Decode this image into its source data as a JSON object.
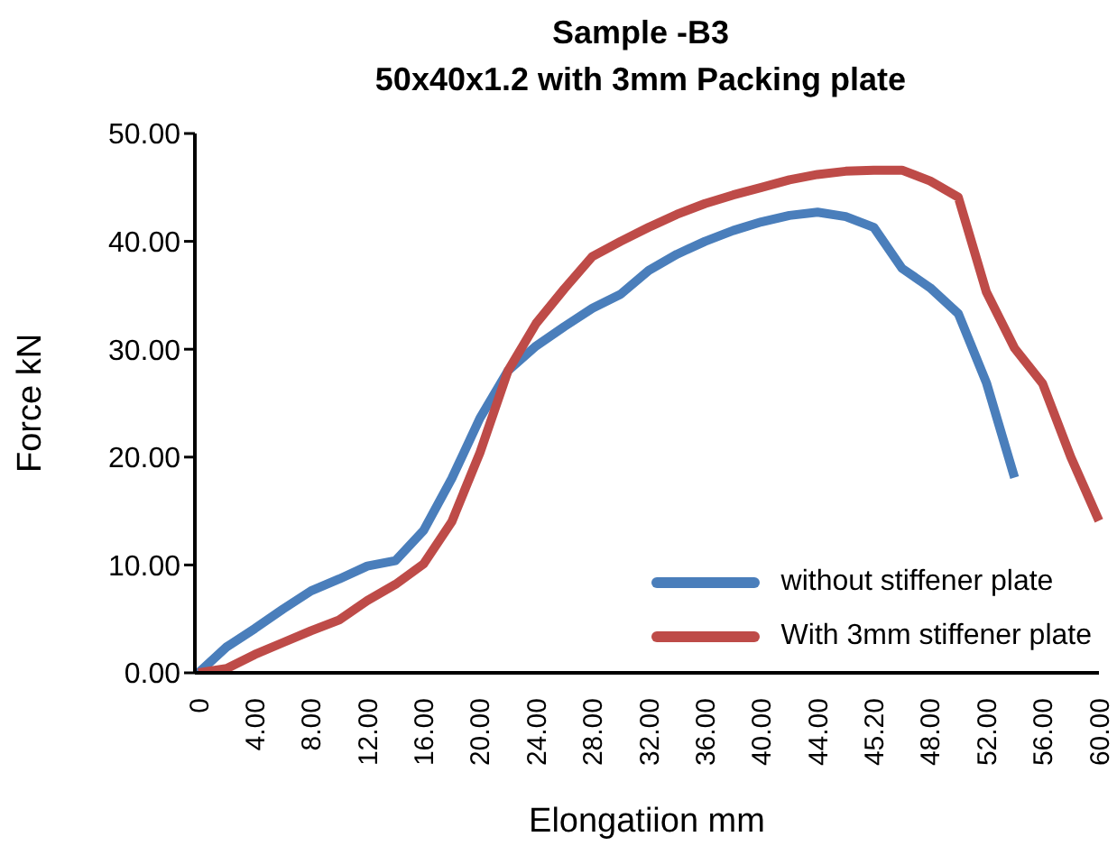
{
  "chart_data": {
    "type": "line",
    "title": "Sample -B3\n50x40x1.2 with 3mm Packing plate",
    "xlabel": "Elongatiion mm",
    "ylabel": "Force kN",
    "categories": [
      "0",
      null,
      "4.00",
      null,
      "8.00",
      null,
      "12.00",
      null,
      "16.00",
      null,
      "20.00",
      null,
      "24.00",
      null,
      "28.00",
      null,
      "32.00",
      null,
      "36.00",
      null,
      "40.00",
      null,
      "44.00",
      null,
      "45.20",
      null,
      "48.00",
      null,
      "52.00",
      null,
      "56.00",
      null,
      "60.00"
    ],
    "ylim": [
      0,
      50
    ],
    "yticks": [
      {
        "value": 0,
        "label": "0.00"
      },
      {
        "value": 10,
        "label": "10.00"
      },
      {
        "value": 20,
        "label": "20.00"
      },
      {
        "value": 30,
        "label": "30.00"
      },
      {
        "value": 40,
        "label": "40.00"
      },
      {
        "value": 50,
        "label": "50.00"
      }
    ],
    "legend": "bottom right",
    "line_style": "solid",
    "series": [
      {
        "name": "without stiffener plate",
        "color": "#4a7ebb",
        "values": [
          0,
          2.4,
          4.1,
          5.9,
          7.6,
          8.7,
          9.9,
          10.4,
          13.2,
          18,
          23.6,
          28,
          30.3,
          32.1,
          33.8,
          35.1,
          37.3,
          38.8,
          40,
          41,
          41.8,
          42.4,
          42.7,
          42.3,
          41.3,
          37.5,
          35.7,
          33.3,
          26.9,
          18.1,
          null,
          null,
          null
        ]
      },
      {
        "name": "With 3mm stiffener plate",
        "color": "#be4b48",
        "values": [
          0,
          0.4,
          1.7,
          2.8,
          3.9,
          4.9,
          6.7,
          8.2,
          10.1,
          14,
          20.4,
          28,
          32.4,
          35.6,
          38.6,
          40,
          41.3,
          42.5,
          43.5,
          44.3,
          45,
          45.7,
          46.2,
          46.5,
          46.6,
          46.6,
          45.6,
          44.1,
          35.3,
          30.1,
          26.8,
          20,
          14.1
        ]
      }
    ]
  }
}
